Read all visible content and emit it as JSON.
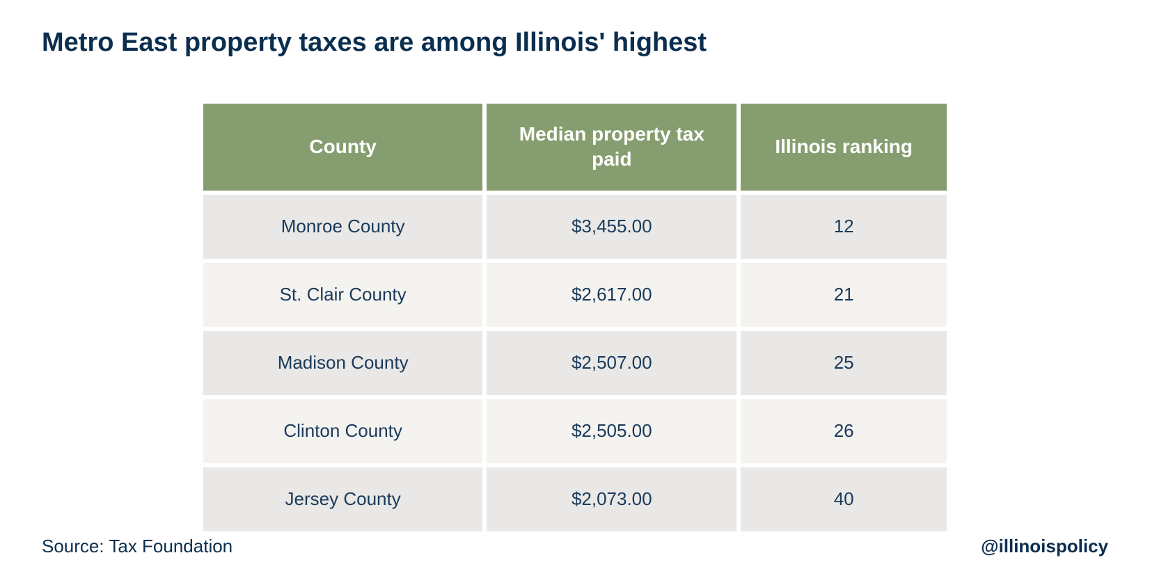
{
  "title": "Metro East property taxes are among Illinois' highest",
  "colors": {
    "title": "#0b2e4f",
    "header_bg": "#869e6f",
    "header_text": "#ffffff",
    "row_odd_bg": "#e9e8e6",
    "row_even_bg": "#f5f3f0",
    "cell_text": "#1a3a5a",
    "footer_text": "#0b2e4f",
    "background": "#ffffff"
  },
  "table": {
    "columns": [
      "County",
      "Median property tax paid",
      "Illinois ranking"
    ],
    "rows": [
      [
        "Monroe County",
        "$3,455.00",
        "12"
      ],
      [
        "St. Clair County",
        "$2,617.00",
        "21"
      ],
      [
        "Madison County",
        "$2,507.00",
        "25"
      ],
      [
        "Clinton County",
        "$2,505.00",
        "26"
      ],
      [
        "Jersey County",
        "$2,073.00",
        "40"
      ]
    ]
  },
  "source": "Source: Tax Foundation",
  "handle": "@illinoispolicy"
}
